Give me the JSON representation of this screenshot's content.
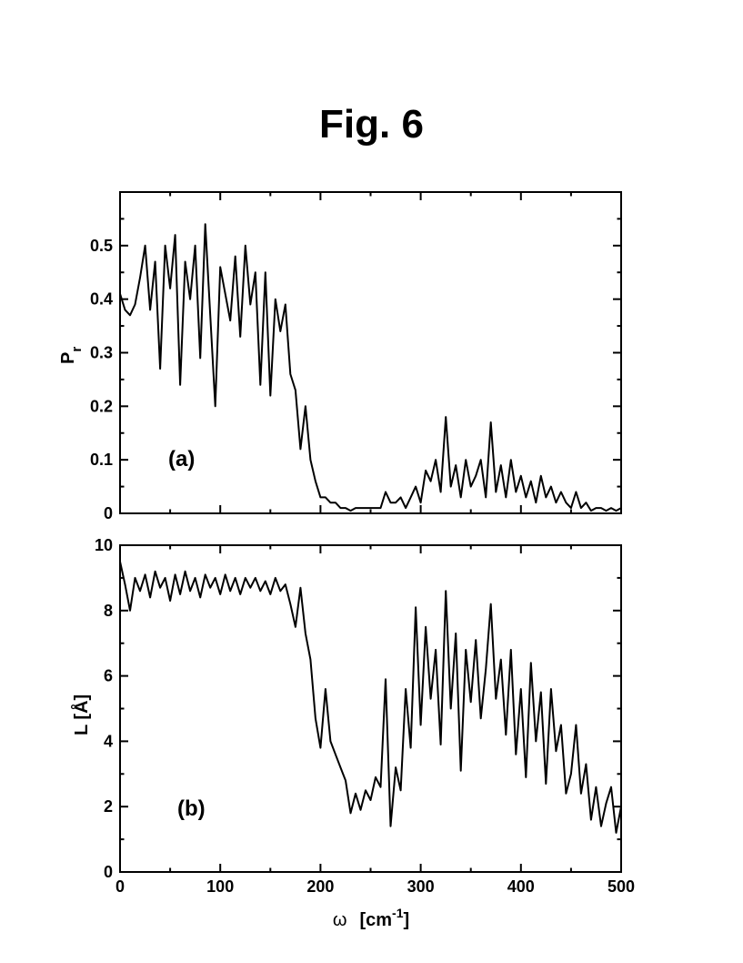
{
  "figure": {
    "title": "Fig. 6"
  },
  "chart_data": [
    {
      "type": "line",
      "panel_label": "(a)",
      "ylabel": "P",
      "ylabel_sub": "r",
      "xlabel": "",
      "xlim": [
        0,
        500
      ],
      "ylim": [
        0,
        0.6
      ],
      "xticks": [
        0,
        100,
        200,
        300,
        400,
        500
      ],
      "xtick_labels_shown": false,
      "yticks": [
        0,
        0.1,
        0.2,
        0.3,
        0.4,
        0.5
      ],
      "ytick_labels": [
        "0",
        "0.1",
        "0.2",
        "0.3",
        "0.4",
        "0.5"
      ],
      "grid": false,
      "series": [
        {
          "x": [
            0,
            5,
            10,
            15,
            20,
            25,
            30,
            35,
            40,
            45,
            50,
            55,
            60,
            65,
            70,
            75,
            80,
            85,
            90,
            95,
            100,
            105,
            110,
            115,
            120,
            125,
            130,
            135,
            140,
            145,
            150,
            155,
            160,
            165,
            170,
            175,
            180,
            185,
            190,
            195,
            200,
            205,
            210,
            215,
            220,
            225,
            230,
            235,
            240,
            245,
            250,
            255,
            260,
            265,
            270,
            275,
            280,
            285,
            290,
            295,
            300,
            305,
            310,
            315,
            320,
            325,
            330,
            335,
            340,
            345,
            350,
            355,
            360,
            365,
            370,
            375,
            380,
            385,
            390,
            395,
            400,
            405,
            410,
            415,
            420,
            425,
            430,
            435,
            440,
            445,
            450,
            455,
            460,
            465,
            470,
            475,
            480,
            485,
            490,
            495,
            500
          ],
          "y": [
            0.41,
            0.38,
            0.37,
            0.39,
            0.44,
            0.5,
            0.38,
            0.47,
            0.27,
            0.5,
            0.42,
            0.52,
            0.24,
            0.47,
            0.4,
            0.5,
            0.29,
            0.54,
            0.37,
            0.2,
            0.46,
            0.41,
            0.36,
            0.48,
            0.33,
            0.5,
            0.39,
            0.45,
            0.24,
            0.45,
            0.22,
            0.4,
            0.34,
            0.39,
            0.26,
            0.23,
            0.12,
            0.2,
            0.1,
            0.06,
            0.03,
            0.03,
            0.02,
            0.02,
            0.01,
            0.01,
            0.005,
            0.01,
            0.01,
            0.01,
            0.01,
            0.01,
            0.01,
            0.04,
            0.02,
            0.02,
            0.03,
            0.01,
            0.03,
            0.05,
            0.02,
            0.08,
            0.06,
            0.1,
            0.04,
            0.18,
            0.05,
            0.09,
            0.03,
            0.1,
            0.05,
            0.07,
            0.1,
            0.03,
            0.17,
            0.04,
            0.09,
            0.03,
            0.1,
            0.04,
            0.07,
            0.03,
            0.06,
            0.02,
            0.07,
            0.03,
            0.05,
            0.02,
            0.04,
            0.02,
            0.01,
            0.04,
            0.01,
            0.02,
            0.005,
            0.01,
            0.01,
            0.005,
            0.01,
            0.005,
            0.01
          ]
        }
      ]
    },
    {
      "type": "line",
      "panel_label": "(b)",
      "ylabel": "L  [Å]",
      "xlabel_symbol": "ω",
      "xlabel_unit": "[cm",
      "xlabel_sup": "-1",
      "xlabel_close": "]",
      "xlim": [
        0,
        500
      ],
      "ylim": [
        0,
        10
      ],
      "xticks": [
        0,
        100,
        200,
        300,
        400,
        500
      ],
      "xtick_labels": [
        "0",
        "100",
        "200",
        "300",
        "400",
        "500"
      ],
      "yticks": [
        0,
        2,
        4,
        6,
        8,
        10
      ],
      "ytick_labels": [
        "0",
        "2",
        "4",
        "6",
        "8",
        "10"
      ],
      "grid": false,
      "series": [
        {
          "x": [
            0,
            5,
            10,
            15,
            20,
            25,
            30,
            35,
            40,
            45,
            50,
            55,
            60,
            65,
            70,
            75,
            80,
            85,
            90,
            95,
            100,
            105,
            110,
            115,
            120,
            125,
            130,
            135,
            140,
            145,
            150,
            155,
            160,
            165,
            170,
            175,
            180,
            185,
            190,
            195,
            200,
            205,
            210,
            215,
            220,
            225,
            230,
            235,
            240,
            245,
            250,
            255,
            260,
            265,
            270,
            275,
            280,
            285,
            290,
            295,
            300,
            305,
            310,
            315,
            320,
            325,
            330,
            335,
            340,
            345,
            350,
            355,
            360,
            365,
            370,
            375,
            380,
            385,
            390,
            395,
            400,
            405,
            410,
            415,
            420,
            425,
            430,
            435,
            440,
            445,
            450,
            455,
            460,
            465,
            470,
            475,
            480,
            485,
            490,
            495,
            500
          ],
          "y": [
            9.5,
            8.8,
            8.0,
            9.0,
            8.6,
            9.1,
            8.4,
            9.2,
            8.7,
            9.0,
            8.3,
            9.1,
            8.5,
            9.2,
            8.6,
            9.0,
            8.4,
            9.1,
            8.7,
            9.0,
            8.5,
            9.1,
            8.6,
            9.0,
            8.5,
            9.0,
            8.7,
            9.0,
            8.6,
            8.9,
            8.5,
            9.0,
            8.6,
            8.8,
            8.2,
            7.5,
            8.7,
            7.3,
            6.5,
            4.7,
            3.8,
            5.6,
            4.0,
            3.6,
            3.2,
            2.8,
            1.8,
            2.4,
            1.9,
            2.5,
            2.2,
            2.9,
            2.6,
            5.9,
            1.4,
            3.2,
            2.5,
            5.6,
            3.8,
            8.1,
            4.5,
            7.5,
            5.3,
            6.8,
            3.9,
            8.6,
            5.0,
            7.3,
            3.1,
            6.8,
            5.2,
            7.1,
            4.7,
            6.2,
            8.2,
            5.3,
            6.5,
            4.2,
            6.8,
            3.6,
            5.6,
            2.9,
            6.4,
            4.0,
            5.5,
            2.7,
            5.6,
            3.7,
            4.5,
            2.4,
            3.0,
            4.5,
            2.4,
            3.3,
            1.6,
            2.6,
            1.4,
            2.1,
            2.6,
            1.2,
            2.0
          ]
        }
      ]
    }
  ]
}
